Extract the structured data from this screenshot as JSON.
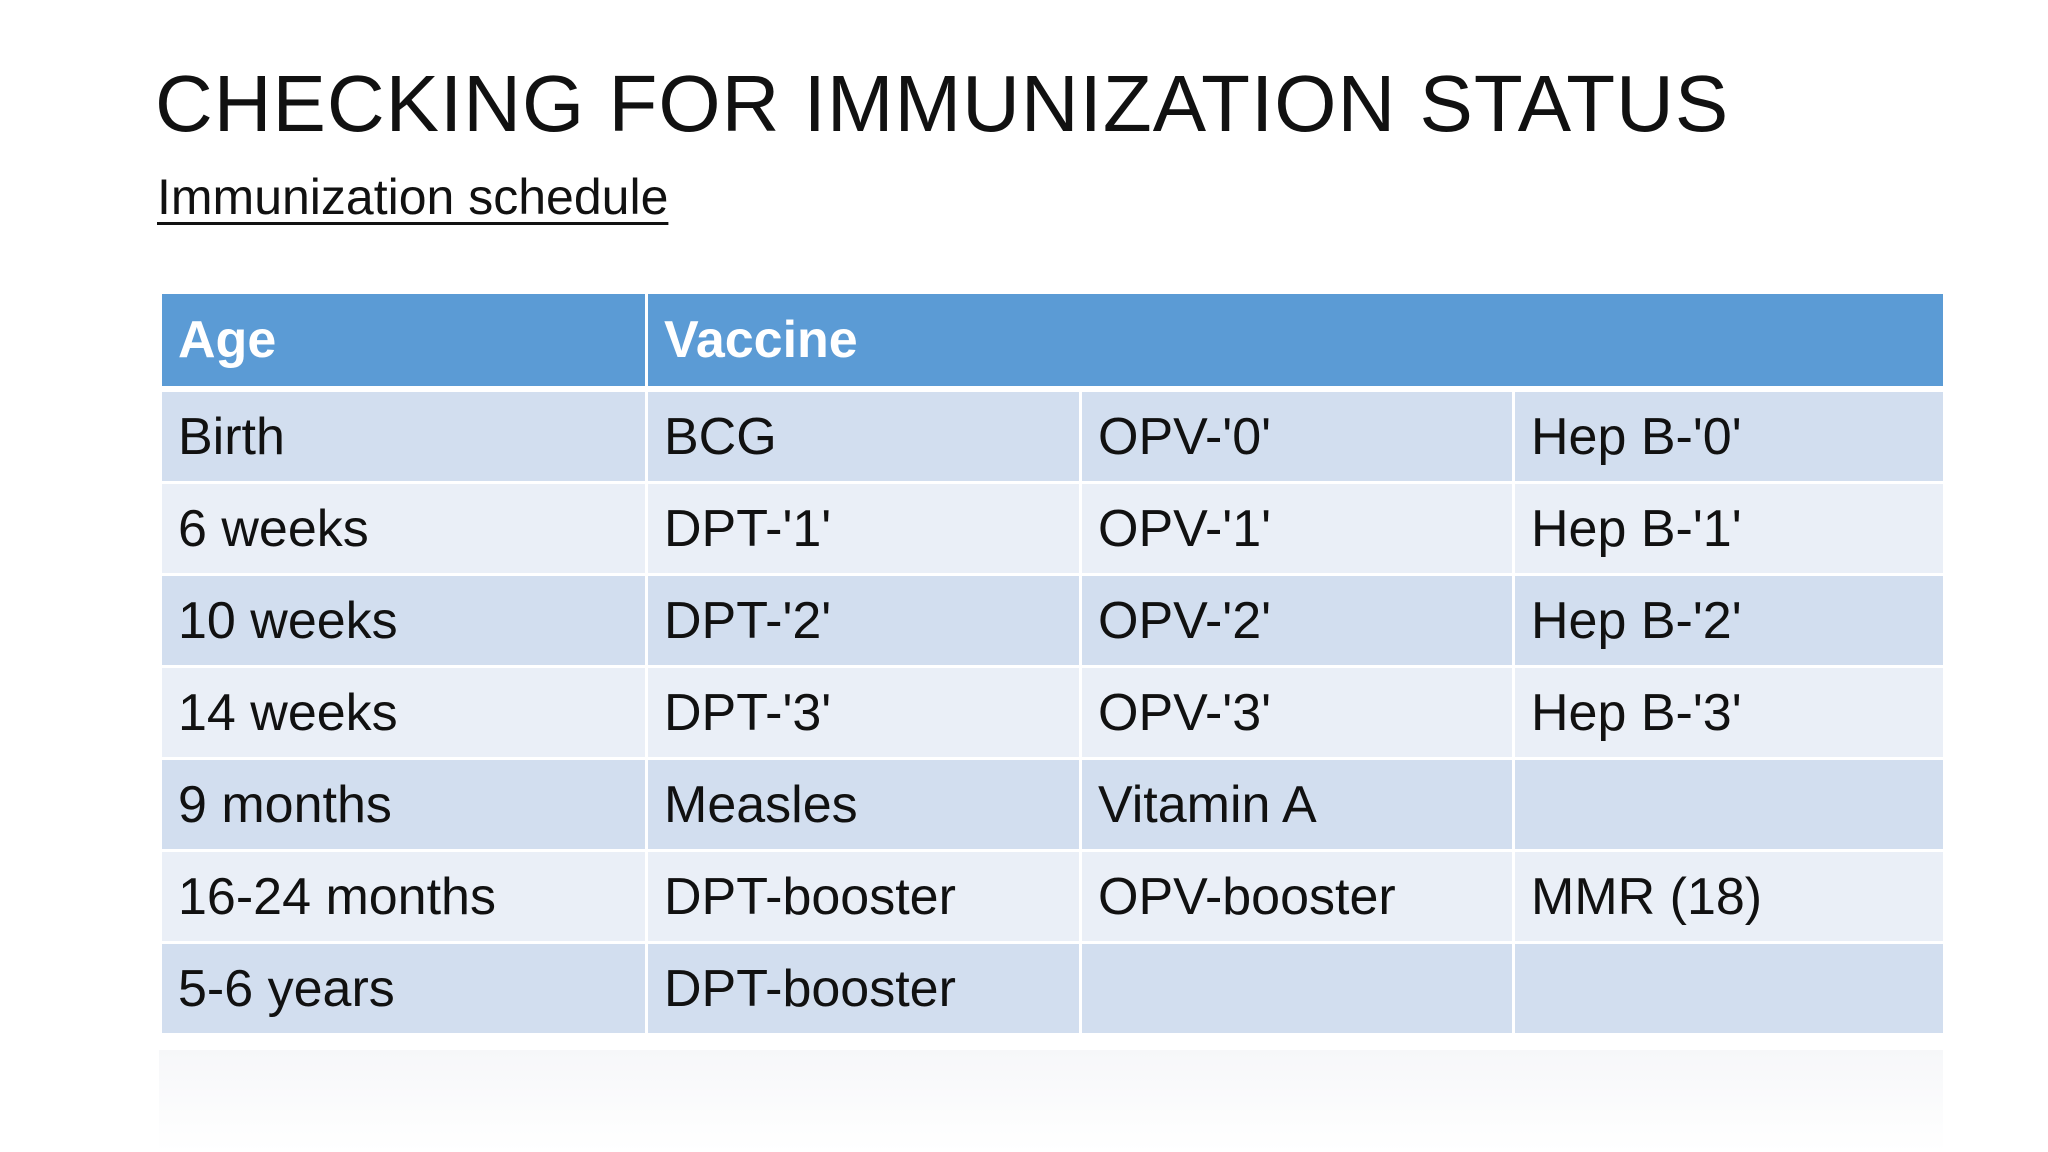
{
  "header": {
    "title": "CHECKING FOR IMMUNIZATION STATUS",
    "subtitle": "Immunization schedule"
  },
  "table": {
    "columns": [
      "Age",
      "Vaccine"
    ],
    "rows": [
      [
        "Birth",
        "BCG",
        "OPV-'0'",
        "Hep B-'0'"
      ],
      [
        "6 weeks",
        "DPT-'1'",
        "OPV-'1'",
        "Hep B-'1'"
      ],
      [
        "10 weeks",
        "DPT-'2'",
        "OPV-'2'",
        "Hep B-'2'"
      ],
      [
        "14 weeks",
        "DPT-'3'",
        "OPV-'3'",
        "Hep B-'3'"
      ],
      [
        "9 months",
        "Measles",
        "Vitamin A",
        null
      ],
      [
        "16-24 months",
        "DPT-booster",
        "OPV-booster",
        "MMR (18)"
      ],
      [
        "5-6 years",
        "DPT-booster",
        null,
        null
      ]
    ]
  }
}
